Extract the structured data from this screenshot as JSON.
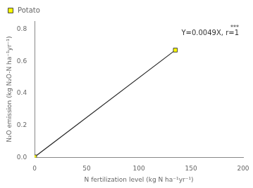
{
  "chart_data": {
    "type": "line",
    "x": [
      0,
      135
    ],
    "series": [
      {
        "name": "Potato",
        "color": "#FFFF00",
        "values": [
          0.003,
          0.669
        ],
        "marker": "square"
      }
    ],
    "xlabel": "N fertilization level (kg N ha⁻¹yr⁻¹)",
    "ylabel": "N₂O emission (kg N₂O-N ha⁻¹yr⁻¹)",
    "xlim": [
      0,
      200
    ],
    "ylim": [
      0.0,
      0.85
    ],
    "xticks": [
      0,
      50,
      100,
      150,
      200
    ],
    "yticks": [
      {
        "value": 0.0,
        "label": "0.0"
      },
      0.2,
      0.4,
      0.6,
      0.8
    ],
    "annotations": [
      "Y=0.0049X, r=1",
      "***"
    ],
    "legend": "upper left",
    "grid": false
  }
}
